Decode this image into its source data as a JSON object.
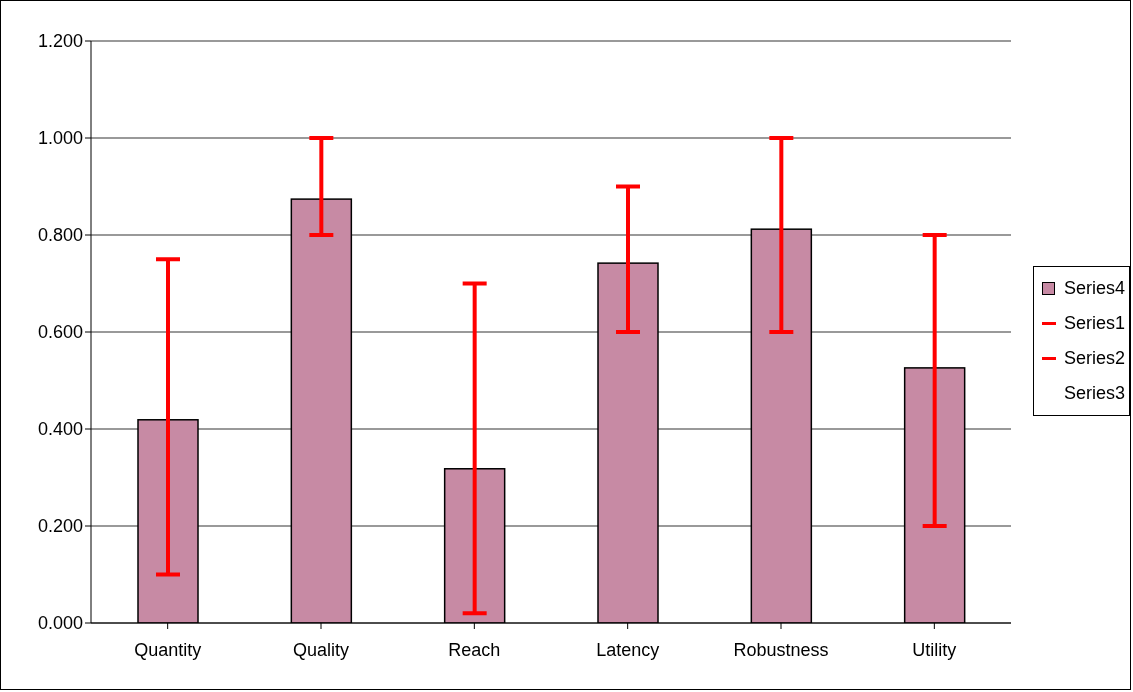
{
  "chart_data": {
    "type": "bar",
    "categories": [
      "Quantity",
      "Quality",
      "Reach",
      "Latency",
      "Robustness",
      "Utility"
    ],
    "series": [
      {
        "name": "Series4",
        "color": "#c78aa4",
        "values": [
          0.419,
          0.874,
          0.318,
          0.742,
          0.812,
          0.526
        ],
        "errors": [
          [
            0.1,
            0.75
          ],
          [
            0.8,
            1.0
          ],
          [
            0.02,
            0.7
          ],
          [
            0.6,
            0.9
          ],
          [
            0.6,
            1.0
          ],
          [
            0.2,
            0.8
          ]
        ]
      },
      {
        "name": "Series1",
        "type": "line",
        "color": "#ff0000",
        "values": [
          null,
          null,
          null,
          null,
          null,
          null
        ]
      },
      {
        "name": "Series2",
        "type": "line",
        "color": "#ff0000",
        "values": [
          null,
          null,
          null,
          null,
          null,
          null
        ]
      },
      {
        "name": "Series3",
        "type": "line",
        "values": [
          null,
          null,
          null,
          null,
          null,
          null
        ]
      }
    ],
    "ylim": [
      0,
      1.2
    ],
    "yticks": [
      {
        "value": 0,
        "label": "0.000"
      },
      {
        "value": 0.2,
        "label": "0.200"
      },
      {
        "value": 0.4,
        "label": "0.400"
      },
      {
        "value": 0.6,
        "label": "0.600"
      },
      {
        "value": 0.8,
        "label": "0.800"
      },
      {
        "value": 1,
        "label": "1.000"
      },
      {
        "value": 1.2,
        "label": "1.200"
      }
    ],
    "grid": "y",
    "legend": "right"
  }
}
